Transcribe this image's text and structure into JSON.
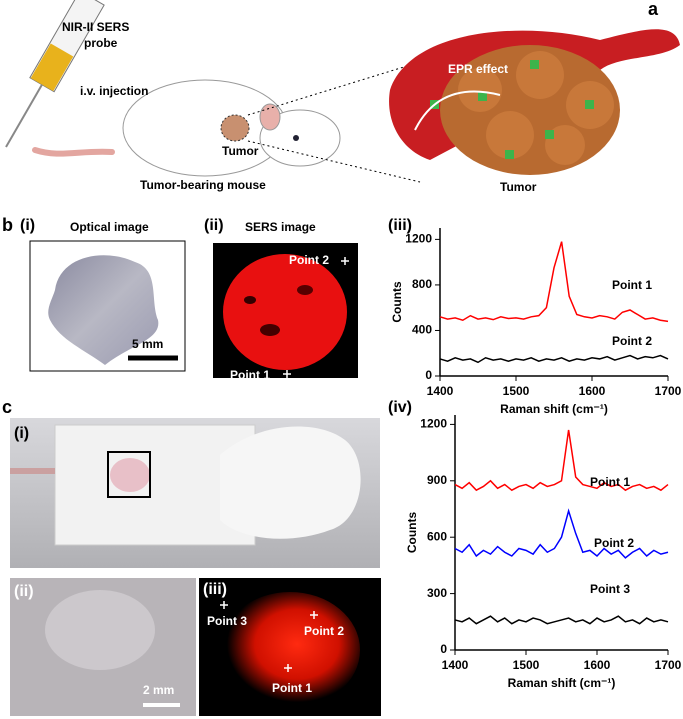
{
  "figure": {
    "panel_a": {
      "label": "a",
      "probe": [
        "NIR-II SERS",
        "probe"
      ],
      "injection": "i.v. injection",
      "tumor_label": "Tumor",
      "mouse_caption": "Tumor-bearing mouse",
      "epr": "EPR effect",
      "tumor_caption": "Tumor"
    },
    "panel_b": {
      "label": "b",
      "i": {
        "label": "(i)",
        "title": "Optical image",
        "scale": "5 mm"
      },
      "ii": {
        "label": "(ii)",
        "title": "SERS image",
        "point_2": "Point 2",
        "point_1": "Point 1"
      }
    },
    "panel_c": {
      "label": "c",
      "i": {
        "label": "(i)"
      },
      "ii": {
        "label": "(ii)",
        "scale": "2 mm"
      },
      "iii": {
        "label": "(iii)",
        "point_3": "Point 3",
        "point_2": "Point 2",
        "point_1": "Point 1"
      }
    }
  },
  "chart_data": [
    {
      "type": "line",
      "label": "(iii)",
      "x_label": "Raman shift (cm⁻¹)",
      "y_label": "Counts",
      "x": [
        1400,
        1410,
        1420,
        1430,
        1440,
        1450,
        1460,
        1470,
        1480,
        1490,
        1500,
        1510,
        1520,
        1530,
        1540,
        1550,
        1560,
        1570,
        1580,
        1590,
        1600,
        1610,
        1620,
        1630,
        1640,
        1650,
        1660,
        1670,
        1680,
        1690,
        1700
      ],
      "xlim": [
        1400,
        1700
      ],
      "xticks": [
        1400,
        1500,
        1600,
        1700
      ],
      "ylim": [
        0,
        1300
      ],
      "yticks": [
        0,
        400,
        800,
        1200
      ],
      "series": [
        {
          "name": "Point 1",
          "color": "#ff0000",
          "values": [
            520,
            500,
            510,
            490,
            530,
            500,
            510,
            495,
            520,
            505,
            510,
            500,
            520,
            530,
            600,
            950,
            1180,
            700,
            540,
            520,
            510,
            530,
            520,
            500,
            560,
            580,
            540,
            500,
            510,
            490,
            480
          ]
        },
        {
          "name": "Point 2",
          "color": "#000000",
          "values": [
            150,
            130,
            160,
            140,
            150,
            120,
            160,
            140,
            150,
            130,
            150,
            140,
            160,
            130,
            150,
            140,
            160,
            130,
            150,
            140,
            160,
            150,
            170,
            140,
            160,
            180,
            150,
            170,
            160,
            180,
            150
          ]
        }
      ]
    },
    {
      "type": "line",
      "label": "(iv)",
      "x_label": "Raman shift (cm⁻¹)",
      "y_label": "Counts",
      "x": [
        1400,
        1410,
        1420,
        1430,
        1440,
        1450,
        1460,
        1470,
        1480,
        1490,
        1500,
        1510,
        1520,
        1530,
        1540,
        1550,
        1560,
        1570,
        1580,
        1590,
        1600,
        1610,
        1620,
        1630,
        1640,
        1650,
        1660,
        1670,
        1680,
        1690,
        1700
      ],
      "xlim": [
        1400,
        1700
      ],
      "xticks": [
        1400,
        1500,
        1600,
        1700
      ],
      "ylim": [
        0,
        1250
      ],
      "yticks": [
        0,
        300,
        600,
        900,
        1200
      ],
      "series": [
        {
          "name": "Point 1",
          "color": "#ff0000",
          "values": [
            880,
            860,
            890,
            850,
            870,
            900,
            860,
            880,
            850,
            870,
            880,
            860,
            890,
            870,
            880,
            900,
            1170,
            920,
            880,
            870,
            860,
            890,
            870,
            880,
            850,
            870,
            880,
            860,
            870,
            850,
            880
          ]
        },
        {
          "name": "Point 2",
          "color": "#0000ff",
          "values": [
            540,
            520,
            560,
            500,
            530,
            510,
            550,
            520,
            500,
            540,
            530,
            510,
            560,
            520,
            540,
            600,
            740,
            620,
            520,
            530,
            500,
            540,
            510,
            530,
            490,
            520,
            540,
            500,
            530,
            510,
            520
          ]
        },
        {
          "name": "Point 3",
          "color": "#000000",
          "values": [
            160,
            150,
            170,
            140,
            160,
            180,
            150,
            170,
            140,
            160,
            150,
            170,
            160,
            140,
            150,
            160,
            170,
            150,
            160,
            140,
            170,
            150,
            160,
            180,
            150,
            160,
            140,
            170,
            150,
            160,
            150
          ]
        }
      ]
    }
  ]
}
